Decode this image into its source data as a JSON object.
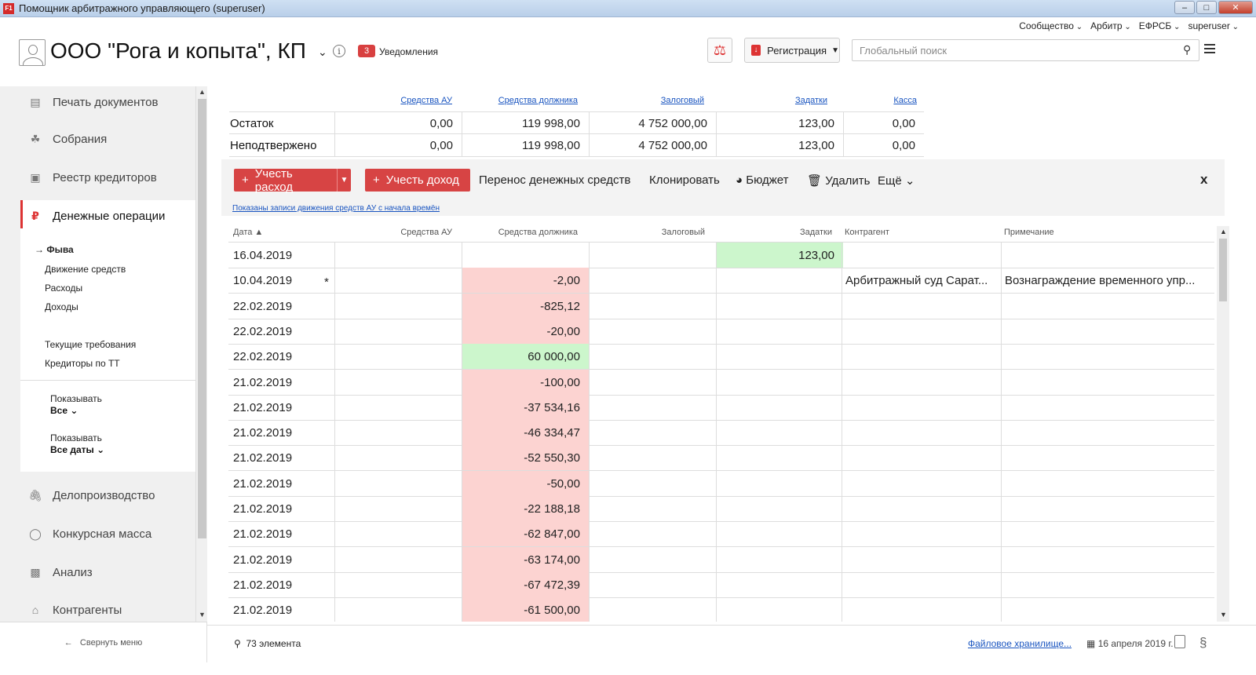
{
  "window": {
    "title": "Помощник арбитражного управляющего (superuser)",
    "app_icon": "F1"
  },
  "toplinks": [
    "Сообщество",
    "Арбитр",
    "ЕФРСБ",
    "superuser"
  ],
  "header": {
    "company": "ООО \"Рога и копыта\", КП",
    "notifications_count": "3",
    "notifications_label": "Уведомления",
    "registration_label": "Регистрация",
    "search_placeholder": "Глобальный поиск"
  },
  "sidebar": {
    "items": [
      {
        "label": "Печать документов",
        "icon": "document-icon"
      },
      {
        "label": "Собрания",
        "icon": "handshake-icon"
      },
      {
        "label": "Реестр кредиторов",
        "icon": "id-card-icon"
      },
      {
        "label": "Денежные операции",
        "icon": "ruble-icon",
        "active": true
      },
      {
        "label": "Делопроизводство",
        "icon": "paperclip-icon"
      },
      {
        "label": "Конкурсная масса",
        "icon": "piggy-bank-icon"
      },
      {
        "label": "Анализ",
        "icon": "bar-chart-icon"
      },
      {
        "label": "Контрагенты",
        "icon": "bank-icon"
      }
    ],
    "sub_items": [
      "Фыва",
      "Движение средств",
      "Расходы",
      "Доходы",
      "Текущие требования",
      "Кредиторы по ТТ"
    ],
    "current_sub": "Фыва",
    "show1_label": "Показывать",
    "show1_value": "Все",
    "show2_label": "Показывать",
    "show2_value": "Все даты",
    "collapse_label": "Свернуть меню"
  },
  "summary": {
    "headers": [
      "Средства АУ",
      "Средства должника",
      "Залоговый",
      "Задатки",
      "Касса"
    ],
    "rows": [
      {
        "label": "Остаток",
        "values": [
          "0,00",
          "119 998,00",
          "4 752 000,00",
          "123,00",
          "0,00"
        ]
      },
      {
        "label": "Неподтвержено",
        "values": [
          "0,00",
          "119 998,00",
          "4 752 000,00",
          "123,00",
          "0,00"
        ]
      }
    ]
  },
  "toolbar": {
    "expense": "Учесть расход",
    "income": "Учесть доход",
    "transfer": "Перенос денежных средств",
    "clone": "Клонировать",
    "budget": "Бюджет",
    "delete": "Удалить",
    "more": "Ещё",
    "close": "x",
    "note": "Показаны записи движения средств АУ с начала времён"
  },
  "grid": {
    "headers": {
      "date": "Дата",
      "au": "Средства АУ",
      "debtor": "Средства должника",
      "pledge": "Залоговый",
      "deposits": "Задатки",
      "counterparty": "Контрагент",
      "note": "Примечание"
    },
    "rows": [
      {
        "date": "16.04.2019",
        "au": "",
        "debtor": "",
        "pledge": "",
        "deposits": "123,00",
        "counterparty": "",
        "note": "",
        "star": ""
      },
      {
        "date": "10.04.2019",
        "au": "",
        "debtor": "-2,00",
        "pledge": "",
        "deposits": "",
        "counterparty": "Арбитражный  суд  Сарат...",
        "note": "Вознаграждение  временного упр...",
        "star": "*"
      },
      {
        "date": "22.02.2019",
        "au": "",
        "debtor": "-825,12",
        "pledge": "",
        "deposits": "",
        "counterparty": "",
        "note": "",
        "star": ""
      },
      {
        "date": "22.02.2019",
        "au": "",
        "debtor": "-20,00",
        "pledge": "",
        "deposits": "",
        "counterparty": "",
        "note": "",
        "star": ""
      },
      {
        "date": "22.02.2019",
        "au": "",
        "debtor": "60 000,00",
        "pledge": "",
        "deposits": "",
        "counterparty": "",
        "note": "",
        "star": ""
      },
      {
        "date": "21.02.2019",
        "au": "",
        "debtor": "-100,00",
        "pledge": "",
        "deposits": "",
        "counterparty": "",
        "note": "",
        "star": ""
      },
      {
        "date": "21.02.2019",
        "au": "",
        "debtor": "-37 534,16",
        "pledge": "",
        "deposits": "",
        "counterparty": "",
        "note": "",
        "star": ""
      },
      {
        "date": "21.02.2019",
        "au": "",
        "debtor": "-46 334,47",
        "pledge": "",
        "deposits": "",
        "counterparty": "",
        "note": "",
        "star": ""
      },
      {
        "date": "21.02.2019",
        "au": "",
        "debtor": "-52 550,30",
        "pledge": "",
        "deposits": "",
        "counterparty": "",
        "note": "",
        "star": ""
      },
      {
        "date": "21.02.2019",
        "au": "",
        "debtor": "-50,00",
        "pledge": "",
        "deposits": "",
        "counterparty": "",
        "note": "",
        "star": ""
      },
      {
        "date": "21.02.2019",
        "au": "",
        "debtor": "-22 188,18",
        "pledge": "",
        "deposits": "",
        "counterparty": "",
        "note": "",
        "star": ""
      },
      {
        "date": "21.02.2019",
        "au": "",
        "debtor": "-62 847,00",
        "pledge": "",
        "deposits": "",
        "counterparty": "",
        "note": "",
        "star": ""
      },
      {
        "date": "21.02.2019",
        "au": "",
        "debtor": "-63 174,00",
        "pledge": "",
        "deposits": "",
        "counterparty": "",
        "note": "",
        "star": ""
      },
      {
        "date": "21.02.2019",
        "au": "",
        "debtor": "-67 472,39",
        "pledge": "",
        "deposits": "",
        "counterparty": "",
        "note": "",
        "star": ""
      },
      {
        "date": "21.02.2019",
        "au": "",
        "debtor": "-61 500,00",
        "pledge": "",
        "deposits": "",
        "counterparty": "",
        "note": "",
        "star": ""
      }
    ]
  },
  "footer": {
    "count": "73 элемента",
    "files": "Файловое хранилище...",
    "date": "16 апреля 2019 г."
  }
}
